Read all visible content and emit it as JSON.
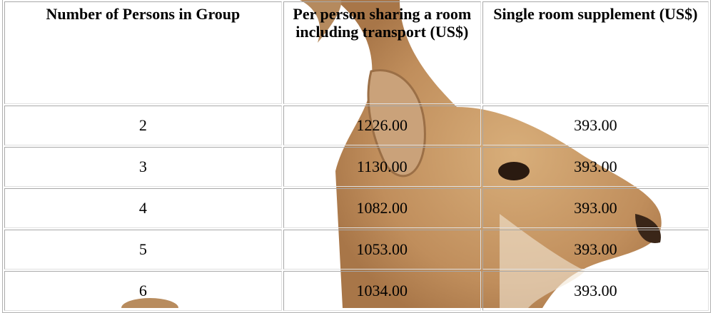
{
  "table": {
    "header": [
      "Number of Persons in Group",
      "Per person sharing a room including transport (US$)",
      "Single room supplement (US$)"
    ],
    "rows": [
      [
        "2",
        "1226.00",
        "393.00"
      ],
      [
        "3",
        "1130.00",
        "393.00"
      ],
      [
        "4",
        "1082.00",
        "393.00"
      ],
      [
        "5",
        "1053.00",
        "393.00"
      ],
      [
        "6",
        "1034.00",
        "393.00"
      ]
    ]
  }
}
